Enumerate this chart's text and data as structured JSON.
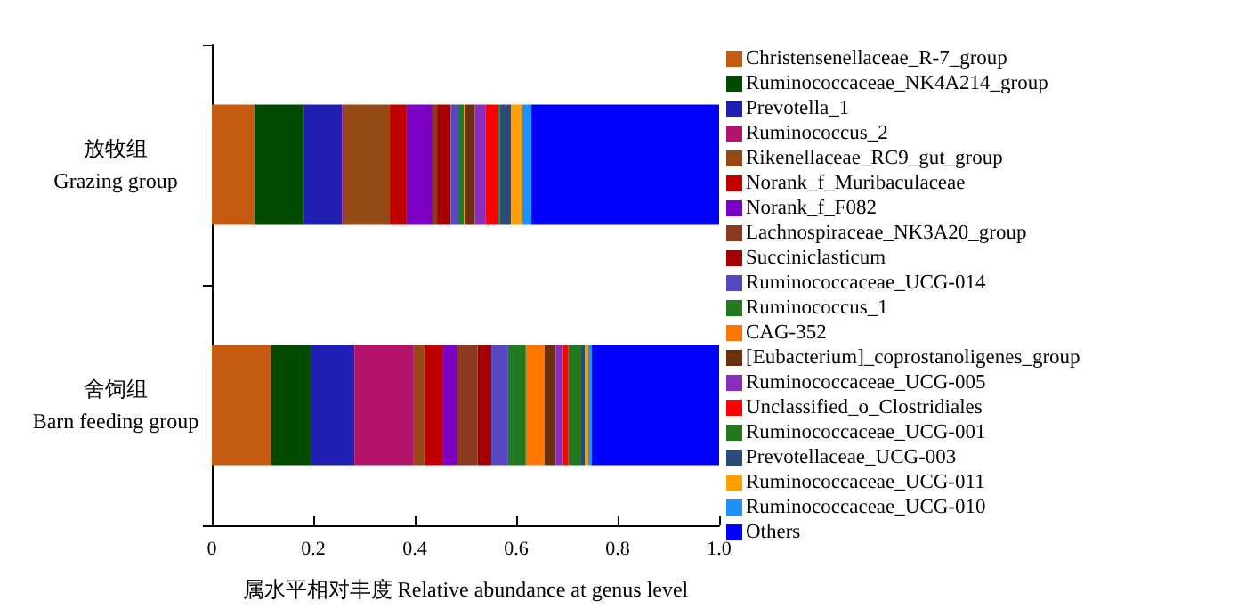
{
  "chart_data": {
    "type": "bar",
    "orientation": "horizontal",
    "stacked": true,
    "xlabel": "属水平相对丰度 Relative abundance at genus level",
    "categories": [
      "放牧组\nGrazing group",
      "舍饲组\nBarn feeding group"
    ],
    "xlim": [
      0,
      1.0
    ],
    "xticks": [
      0,
      0.2,
      0.4,
      0.6,
      0.8,
      {
        "value": 1.0,
        "label": "1.0"
      }
    ],
    "grid": false,
    "legend": "right",
    "series": [
      {
        "name": "Christensenellaceae_R-7_group",
        "color": "#c55a11",
        "values": [
          0.084,
          0.117
        ]
      },
      {
        "name": "Ruminococcaceae_NK4A214_group",
        "color": "#004b00",
        "values": [
          0.097,
          0.079
        ]
      },
      {
        "name": "Prevotella_1",
        "color": "#1f1fb4",
        "values": [
          0.076,
          0.085
        ]
      },
      {
        "name": "Ruminococcus_2",
        "color": "#b5136b",
        "values": [
          0.004,
          0.117
        ]
      },
      {
        "name": "Rikenellaceae_RC9_gut_group",
        "color": "#954a14",
        "values": [
          0.09,
          0.021
        ]
      },
      {
        "name": "Norank_f_Muribaculaceae",
        "color": "#c00000",
        "values": [
          0.033,
          0.037
        ]
      },
      {
        "name": "Norank_f_F082",
        "color": "#7b00c4",
        "values": [
          0.051,
          0.027
        ]
      },
      {
        "name": "Lachnospiraceae_NK3A20_group",
        "color": "#8b3a20",
        "values": [
          0.009,
          0.041
        ]
      },
      {
        "name": "Succiniclasticum",
        "color": "#a50000",
        "values": [
          0.027,
          0.027
        ]
      },
      {
        "name": "Ruminococcaceae_UCG-014",
        "color": "#5548c0",
        "values": [
          0.015,
          0.033
        ]
      },
      {
        "name": "Ruminococcus_1",
        "color": "#217a21",
        "values": [
          0.011,
          0.035
        ]
      },
      {
        "name": "CAG-352",
        "color": "#ff7700",
        "values": [
          0.003,
          0.037
        ]
      },
      {
        "name": "[Eubacterium]_coprostanoligenes_group",
        "color": "#6b2f0b",
        "values": [
          0.018,
          0.022
        ]
      },
      {
        "name": "Ruminococcaceae_UCG-005",
        "color": "#8a2dbf",
        "values": [
          0.021,
          0.014
        ]
      },
      {
        "name": "Unclassified_o_Clostridiales",
        "color": "#ff0000",
        "values": [
          0.026,
          0.011
        ]
      },
      {
        "name": "Ruminococcaceae_UCG-001",
        "color": "#23781e",
        "values": [
          0.003,
          0.025
        ]
      },
      {
        "name": "Prevotellaceae_UCG-003",
        "color": "#2c4a7a",
        "values": [
          0.022,
          0.008
        ]
      },
      {
        "name": "Ruminococcaceae_UCG-011",
        "color": "#ffa000",
        "values": [
          0.022,
          0.006
        ]
      },
      {
        "name": "Ruminococcaceae_UCG-010",
        "color": "#1e90ff",
        "values": [
          0.018,
          0.007
        ]
      },
      {
        "name": "Others",
        "color": "#0000ff",
        "values": [
          0.37,
          0.251
        ]
      }
    ]
  }
}
